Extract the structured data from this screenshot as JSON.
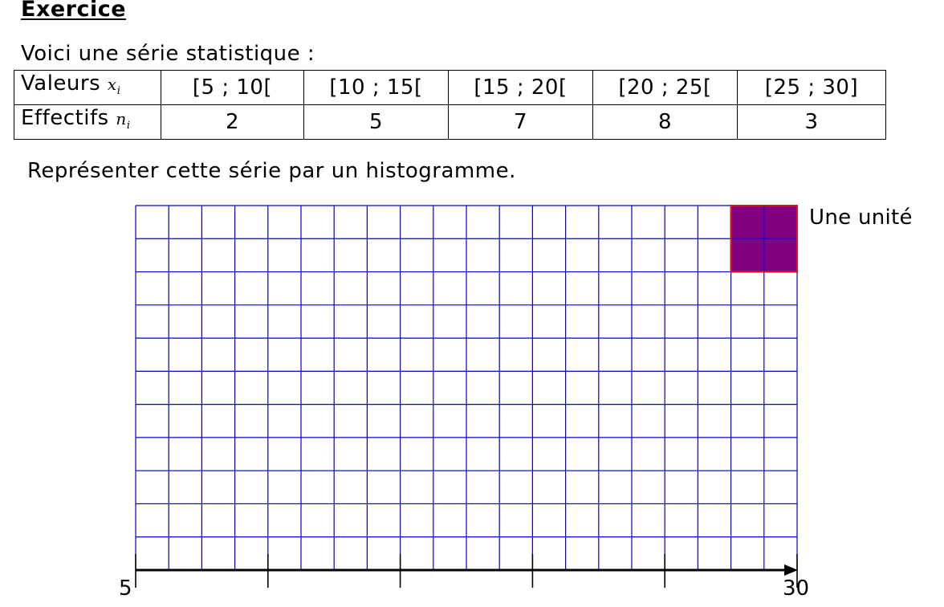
{
  "title": "Exercice",
  "intro": "Voici une série statistique :",
  "table": {
    "row_values_label": "Valeurs",
    "row_values_var": "x",
    "row_values_sub": "i",
    "row_counts_label": "Effectifs",
    "row_counts_var": "n",
    "row_counts_sub": "i",
    "intervals": [
      "[5 ; 10[",
      "[10 ; 15[",
      "[15 ; 20[",
      "[20 ; 25[",
      "[25 ; 30]"
    ],
    "counts": [
      "2",
      "5",
      "7",
      "8",
      "3"
    ]
  },
  "instruction": "Représenter cette série par un histogramme.",
  "grid": {
    "columns": 20,
    "rows": 11,
    "line_color": "#0000cc",
    "unit_fill": "#800080",
    "unit_border": "#e0141e"
  },
  "unit_label": "Une unité",
  "axis": {
    "min_label": "5",
    "max_label": "30",
    "ticks": [
      5,
      10,
      15,
      20,
      25,
      30
    ]
  }
}
